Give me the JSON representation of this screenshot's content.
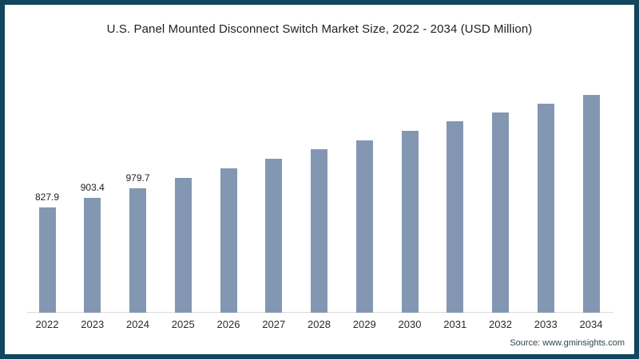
{
  "source": {
    "text": "Source: www.gminsights.com"
  },
  "theme": {
    "frame_border_color": "#10465e",
    "background_color": "#ffffff",
    "bar_color": "#8397b3",
    "axis_line_color": "#d9d9d9",
    "title_color": "#1f1f1f",
    "tick_color": "#2b2b2b"
  },
  "chart_data": {
    "type": "bar",
    "title": "U.S. Panel Mounted Disconnect Switch Market Size, 2022 - 2034 (USD Million)",
    "xlabel": "",
    "ylabel": "",
    "categories": [
      "2022",
      "2023",
      "2024",
      "2025",
      "2026",
      "2027",
      "2028",
      "2029",
      "2030",
      "2031",
      "2032",
      "2033",
      "2034"
    ],
    "values": [
      827.9,
      903.4,
      979.7,
      1058,
      1132,
      1208,
      1284,
      1357,
      1431,
      1504,
      1576,
      1646,
      1712
    ],
    "data_labels": [
      "827.9",
      "903.4",
      "979.7"
    ],
    "bar_color": "#8397b3",
    "ylim": [
      0,
      2070
    ],
    "grid": false,
    "legend": false,
    "y_axis_visible": false,
    "x_axis_line_color": "#d9d9d9"
  }
}
